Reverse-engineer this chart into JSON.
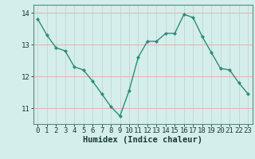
{
  "x": [
    0,
    1,
    2,
    3,
    4,
    5,
    6,
    7,
    8,
    9,
    10,
    11,
    12,
    13,
    14,
    15,
    16,
    17,
    18,
    19,
    20,
    21,
    22,
    23
  ],
  "y": [
    13.8,
    13.3,
    12.9,
    12.8,
    12.3,
    12.2,
    11.85,
    11.45,
    11.05,
    10.75,
    11.55,
    12.6,
    13.1,
    13.1,
    13.35,
    13.35,
    13.95,
    13.85,
    13.25,
    12.75,
    12.25,
    12.2,
    11.8,
    11.45
  ],
  "line_color": "#2e8b7a",
  "marker": "D",
  "marker_size": 2,
  "xlabel": "Humidex (Indice chaleur)",
  "xlim": [
    -0.5,
    23.5
  ],
  "ylim": [
    10.5,
    14.25
  ],
  "yticks": [
    11,
    12,
    13,
    14
  ],
  "xticks": [
    0,
    1,
    2,
    3,
    4,
    5,
    6,
    7,
    8,
    9,
    10,
    11,
    12,
    13,
    14,
    15,
    16,
    17,
    18,
    19,
    20,
    21,
    22,
    23
  ],
  "bg_color": "#d4eeeb",
  "grid_color_h": "#e8b0b0",
  "grid_color_v": "#c8d8d5",
  "tick_label_fontsize": 6.5,
  "xlabel_fontsize": 7.5
}
